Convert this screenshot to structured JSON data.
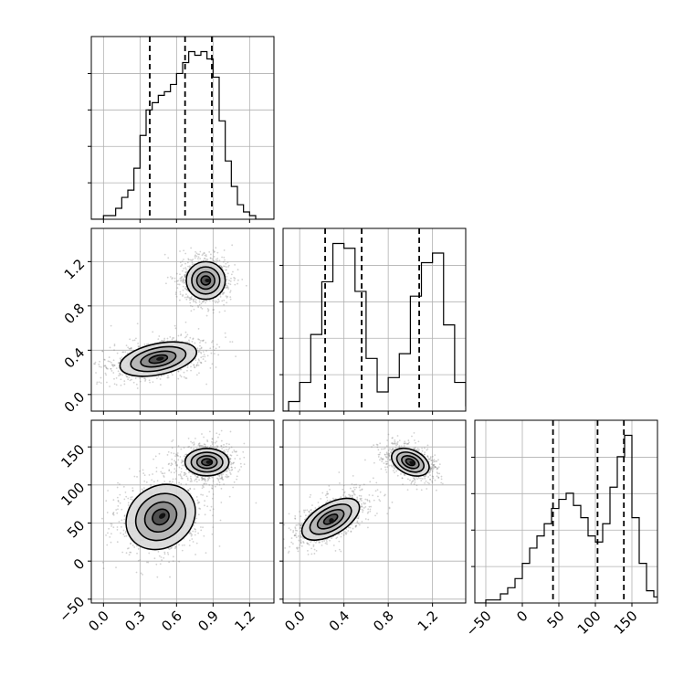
{
  "chart_data": {
    "type": "corner",
    "title": "",
    "grid": true,
    "histogram_x": [
      {
        "name": "",
        "bin_edges": [
          -0.1,
          -0.05,
          0.0,
          0.05,
          0.1,
          0.15,
          0.2,
          0.25,
          0.3,
          0.35,
          0.4,
          0.45,
          0.5,
          0.55,
          0.6,
          0.65,
          0.7,
          0.75,
          0.8,
          0.85,
          0.9,
          0.95,
          1.0,
          1.05,
          1.1,
          1.15,
          1.2,
          1.25,
          1.3,
          1.35,
          1.4
        ],
        "counts": [
          0,
          0,
          1,
          1,
          3,
          6,
          8,
          14,
          23,
          30,
          32,
          34,
          35,
          37,
          40,
          43,
          46,
          45,
          46,
          44,
          39,
          27,
          16,
          9,
          4,
          2,
          1,
          0,
          0,
          0
        ],
        "quantiles": [
          0.38,
          0.67,
          0.89
        ],
        "xlim": [
          -0.1,
          1.4
        ],
        "xticks": [
          "0.0",
          "0.3",
          "0.6",
          "0.9",
          "1.2"
        ]
      },
      {
        "name": "",
        "bin_edges": [
          -0.2,
          -0.1,
          0.0,
          0.1,
          0.2,
          0.3,
          0.4,
          0.5,
          0.6,
          0.7,
          0.8,
          0.9,
          1.0,
          1.1,
          1.2,
          1.3,
          1.4,
          1.5
        ],
        "counts": [
          0,
          2,
          6,
          16,
          27,
          35,
          34,
          25,
          11,
          4,
          7,
          12,
          24,
          31,
          33,
          18,
          6,
          1
        ],
        "quantiles": [
          0.23,
          0.56,
          1.08
        ],
        "xlim": [
          -0.15,
          1.5
        ],
        "xticks": [
          "0.0",
          "0.4",
          "0.8",
          "1.2"
        ]
      },
      {
        "name": "",
        "bin_edges": [
          -80,
          -70,
          -60,
          -50,
          -40,
          -30,
          -20,
          -10,
          0,
          10,
          20,
          30,
          40,
          50,
          60,
          70,
          80,
          90,
          100,
          110,
          120,
          130,
          140,
          150,
          160,
          170,
          180,
          190,
          200
        ],
        "counts": [
          0,
          0,
          0,
          1,
          1,
          3,
          5,
          8,
          13,
          18,
          22,
          26,
          31,
          34,
          36,
          32,
          28,
          22,
          20,
          26,
          38,
          48,
          55,
          28,
          13,
          4,
          2,
          0
        ],
        "quantiles": [
          42,
          103,
          139
        ],
        "xlim": [
          -65,
          185
        ],
        "xticks": [
          "-50",
          "0",
          "50",
          "100",
          "150"
        ]
      }
    ],
    "contour_panels": [
      {
        "x_param": 0,
        "y_param": 1,
        "ylim": [
          -0.15,
          1.5
        ],
        "yticks": [
          "0.0",
          "0.4",
          "0.8",
          "1.2"
        ],
        "blobs": [
          {
            "cx": 0.45,
            "cy": 0.32,
            "sx": 0.32,
            "sy": 0.14,
            "theta": -12,
            "peak": 0.68
          },
          {
            "cx": 0.84,
            "cy": 1.03,
            "sx": 0.16,
            "sy": 0.17,
            "theta": 0,
            "peak": 0.82
          }
        ]
      },
      {
        "x_param": 0,
        "y_param": 2,
        "ylim": [
          -55,
          185
        ],
        "yticks": [
          "-50",
          "0",
          "50",
          "100",
          "150"
        ],
        "blobs": [
          {
            "cx": 0.47,
            "cy": 58,
            "sx": 0.3,
            "sy": 40,
            "theta": -35,
            "peak": 0.58
          },
          {
            "cx": 0.85,
            "cy": 130,
            "sx": 0.18,
            "sy": 18,
            "theta": 0,
            "peak": 0.85
          }
        ]
      },
      {
        "x_param": 1,
        "y_param": 2,
        "ylim": [
          -55,
          185
        ],
        "yticks": [],
        "blobs": [
          {
            "cx": 0.28,
            "cy": 55,
            "sx": 0.14,
            "sy": 42,
            "theta": 60,
            "peak": 0.6
          },
          {
            "cx": 1.0,
            "cy": 130,
            "sx": 0.18,
            "sy": 16,
            "theta": 25,
            "peak": 0.85
          }
        ]
      }
    ],
    "contour_levels": 4,
    "colors": {
      "ink": "#000000",
      "grid": "#b0b0b0",
      "scatter": "#7f7f7f"
    }
  }
}
